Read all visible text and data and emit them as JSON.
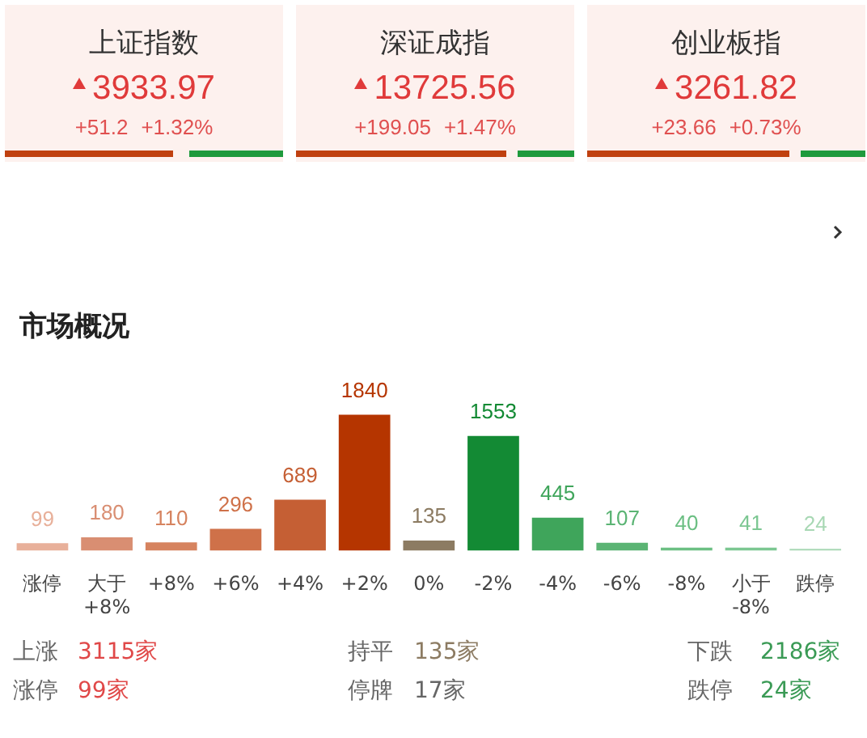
{
  "chart_data": {
    "type": "bar",
    "title": "市场概况",
    "categories": [
      "涨停",
      "大于\n+8%",
      "+8%",
      "+6%",
      "+4%",
      "+2%",
      "0%",
      "-2%",
      "-4%",
      "-6%",
      "-8%",
      "小于\n-8%",
      "跌停"
    ],
    "values": [
      99,
      180,
      110,
      296,
      689,
      1840,
      135,
      1553,
      445,
      107,
      40,
      41,
      24
    ],
    "colors": [
      "#e8b09a",
      "#d98e72",
      "#d6835f",
      "#cf7149",
      "#c55f34",
      "#b53500",
      "#8c7b62",
      "#138a34",
      "#3fa55b",
      "#5bb474",
      "#6cbf83",
      "#7cc792",
      "#a8d8b4"
    ],
    "data_labels": true,
    "grid": false,
    "legend": false,
    "annotations": [
      "上证指数",
      "3933.97",
      "+51.2",
      "+1.32%",
      "深证成指",
      "13725.56",
      "+199.05",
      "+1.47%",
      "创业板指",
      "3261.82",
      "+23.66",
      "+0.73%",
      "上涨",
      "3115家",
      "持平",
      "135家",
      "下跌",
      "2186家",
      "涨停",
      "99家",
      "停牌",
      "17家",
      "跌停",
      "24家"
    ]
  }
}
